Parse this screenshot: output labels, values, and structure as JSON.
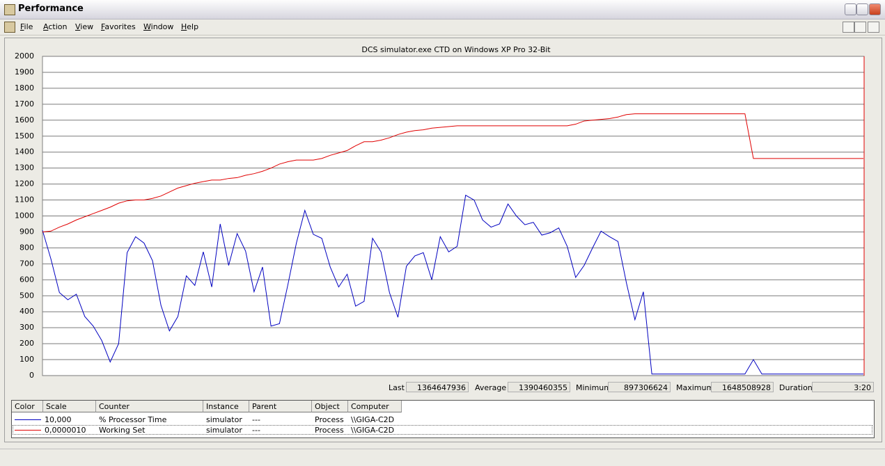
{
  "window": {
    "title": "Performance",
    "menu": [
      "File",
      "Action",
      "View",
      "Favorites",
      "Window",
      "Help"
    ]
  },
  "chart_data": {
    "type": "line",
    "title": "DCS simulator.exe CTD on Windows XP Pro 32-Bit",
    "ylim": [
      0,
      2000
    ],
    "yticks": [
      0,
      100,
      200,
      300,
      400,
      500,
      600,
      700,
      800,
      900,
      1000,
      1100,
      1200,
      1300,
      1400,
      1500,
      1600,
      1700,
      1800,
      1900,
      2000
    ],
    "grid": true,
    "series": [
      {
        "name": "% Processor Time",
        "color": "#0000c0",
        "scale": "10,000",
        "instance": "simulator",
        "parent": "---",
        "object": "Process",
        "computer": "\\\\GIGA-C2D",
        "values": [
          910,
          730,
          520,
          475,
          510,
          370,
          310,
          220,
          85,
          200,
          770,
          870,
          830,
          720,
          440,
          280,
          370,
          625,
          565,
          775,
          555,
          950,
          690,
          890,
          780,
          525,
          680,
          310,
          325,
          570,
          830,
          1035,
          885,
          860,
          680,
          555,
          635,
          435,
          465,
          860,
          775,
          520,
          365,
          685,
          750,
          770,
          600,
          870,
          775,
          810,
          1130,
          1100,
          975,
          930,
          950,
          1075,
          1000,
          945,
          960,
          880,
          895,
          925,
          810,
          615,
          690,
          800,
          905,
          870,
          840,
          580,
          350,
          525,
          10,
          10,
          10,
          10,
          10,
          10,
          10,
          10,
          10,
          10,
          10,
          10,
          100,
          10,
          10,
          10,
          10,
          10,
          10,
          10,
          10,
          10,
          10,
          10,
          10,
          10
        ]
      },
      {
        "name": "Working Set",
        "color": "#e00000",
        "scale": "0,0000010",
        "instance": "simulator",
        "parent": "---",
        "object": "Process",
        "computer": "\\\\GIGA-C2D",
        "values": [
          900,
          905,
          930,
          950,
          975,
          995,
          1015,
          1035,
          1055,
          1080,
          1095,
          1100,
          1100,
          1110,
          1125,
          1150,
          1175,
          1190,
          1205,
          1215,
          1225,
          1225,
          1235,
          1240,
          1255,
          1265,
          1280,
          1300,
          1325,
          1340,
          1350,
          1350,
          1350,
          1360,
          1380,
          1395,
          1410,
          1440,
          1465,
          1465,
          1475,
          1490,
          1510,
          1525,
          1535,
          1540,
          1550,
          1555,
          1560,
          1565,
          1565,
          1565,
          1565,
          1565,
          1565,
          1565,
          1565,
          1565,
          1565,
          1565,
          1565,
          1565,
          1565,
          1575,
          1595,
          1600,
          1605,
          1610,
          1620,
          1635,
          1640,
          1640,
          1640,
          1640,
          1640,
          1640,
          1640,
          1640,
          1640,
          1640,
          1640,
          1640,
          1640,
          1640,
          1360,
          1360,
          1360,
          1360,
          1360,
          1360,
          1360,
          1360,
          1360,
          1360,
          1360,
          1360,
          1360,
          1360
        ]
      }
    ]
  },
  "stats": [
    {
      "label": "Last",
      "value": "1364647936"
    },
    {
      "label": "Average",
      "value": "1390460355"
    },
    {
      "label": "Minimum",
      "value": "897306624"
    },
    {
      "label": "Maximum",
      "value": "1648508928"
    },
    {
      "label": "Duration",
      "value": "3:20"
    }
  ],
  "legend_columns": [
    "Color",
    "Scale",
    "Counter",
    "Instance",
    "Parent",
    "Object",
    "Computer"
  ]
}
